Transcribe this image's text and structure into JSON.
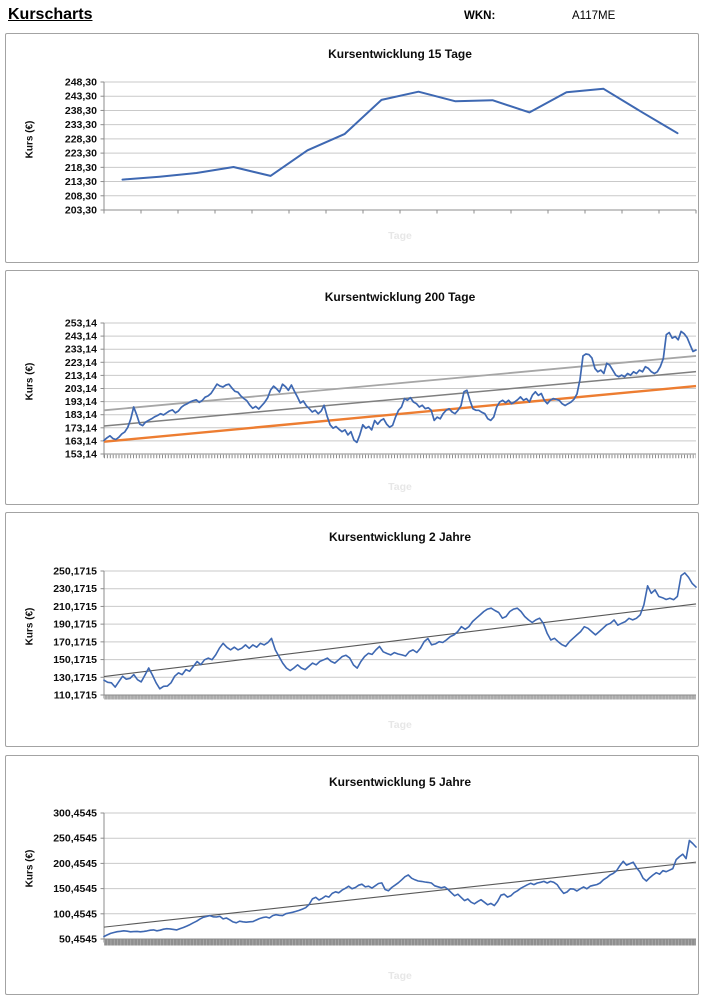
{
  "header": {
    "title": "Kurscharts",
    "wkn_label": "WKN:",
    "wkn_value": "A117ME"
  },
  "colors": {
    "series_blue": "#3E68B2",
    "trend_orange": "#ED7D31",
    "trend_gray_light": "#A6A6A6",
    "trend_gray_dark": "#7F7F7F",
    "trend_thin_dark": "#595959",
    "gridline": "#C9C9C9",
    "axis": "#8C8C8C",
    "band_light": "#ABABAB",
    "band_dark": "#8F8F8F"
  },
  "chart_data": [
    {
      "type": "line",
      "title": "Kursentwicklung 15 Tage",
      "ylabel": "Kurs (€)",
      "xlabel": "Tage",
      "ylim": [
        203.3,
        248.3
      ],
      "yticks": [
        {
          "label": "248,30",
          "value": 248.3
        },
        {
          "label": "243,30",
          "value": 243.3
        },
        {
          "label": "238,30",
          "value": 238.3
        },
        {
          "label": "233,30",
          "value": 233.3
        },
        {
          "label": "228,30",
          "value": 228.3
        },
        {
          "label": "223,30",
          "value": 223.3
        },
        {
          "label": "218,30",
          "value": 218.3
        },
        {
          "label": "213,30",
          "value": 213.3
        },
        {
          "label": "208,30",
          "value": 208.3
        },
        {
          "label": "203,30",
          "value": 203.3
        }
      ],
      "x_axis_style": "ticks",
      "x_tick_count": 16,
      "trendlines": [],
      "series": [
        {
          "name": "Kurs",
          "color": "#3E68B2",
          "width": 2,
          "values": [
            214.0,
            215.0,
            216.3,
            218.4,
            215.3,
            224.3,
            230.0,
            242.0,
            244.9,
            241.5,
            241.9,
            237.6,
            244.7,
            245.9,
            238.0,
            230.3
          ]
        }
      ]
    },
    {
      "type": "line",
      "title": "Kursentwicklung 200 Tage",
      "ylabel": "Kurs (€)",
      "xlabel": "Tage",
      "ylim": [
        153.14,
        253.14
      ],
      "yticks": [
        {
          "label": "253,14",
          "value": 253.14
        },
        {
          "label": "243,14",
          "value": 243.14
        },
        {
          "label": "233,14",
          "value": 233.14
        },
        {
          "label": "223,14",
          "value": 223.14
        },
        {
          "label": "213,14",
          "value": 213.14
        },
        {
          "label": "203,14",
          "value": 203.14
        },
        {
          "label": "193,14",
          "value": 193.14
        },
        {
          "label": "183,14",
          "value": 183.14
        },
        {
          "label": "173,14",
          "value": 173.14
        },
        {
          "label": "163,14",
          "value": 163.14
        },
        {
          "label": "153,14",
          "value": 153.14
        }
      ],
      "x_axis_style": "dashes",
      "x_tick_count": 200,
      "trendlines": [
        {
          "from": 186.5,
          "to": 228.0,
          "color": "#A6A6A6",
          "width": 1.8
        },
        {
          "from": 174.5,
          "to": 216.0,
          "color": "#7F7F7F",
          "width": 1.5
        },
        {
          "from": 162.5,
          "to": 205.0,
          "color": "#ED7D31",
          "width": 2.4
        }
      ],
      "series": [
        {
          "name": "Kurs",
          "color": "#3E68B2",
          "width": 1.7,
          "values": [
            163.5,
            165.5,
            167.0,
            165.0,
            164.2,
            166.0,
            168.5,
            170.0,
            173.5,
            180.0,
            189.0,
            183.0,
            176.0,
            174.8,
            177.5,
            178.8,
            180.0,
            181.5,
            182.5,
            183.9,
            183.0,
            184.5,
            186.0,
            186.8,
            184.5,
            186.0,
            188.8,
            190.5,
            191.5,
            193.0,
            193.8,
            194.5,
            192.5,
            194.0,
            196.5,
            197.5,
            199.5,
            203.0,
            206.5,
            205.0,
            204.3,
            205.8,
            206.4,
            203.5,
            201.0,
            200.3,
            197.5,
            195.5,
            193.8,
            190.5,
            188.0,
            189.5,
            187.5,
            190.0,
            192.5,
            196.0,
            202.0,
            204.9,
            203.0,
            200.5,
            206.4,
            204.5,
            201.8,
            205.8,
            201.0,
            196.7,
            192.1,
            193.6,
            190.0,
            187.7,
            185.2,
            186.5,
            183.9,
            186.0,
            190.3,
            182.0,
            175.4,
            172.8,
            174.1,
            172.0,
            170.2,
            171.5,
            167.7,
            170.2,
            163.8,
            162.0,
            167.7,
            175.4,
            172.8,
            174.1,
            171.5,
            178.7,
            175.9,
            178.7,
            180.0,
            176.0,
            173.6,
            175.0,
            181.3,
            186.5,
            189.0,
            195.4,
            194.1,
            196.2,
            192.8,
            191.6,
            189.0,
            190.3,
            187.7,
            188.5,
            186.5,
            178.8,
            181.3,
            180.0,
            183.9,
            186.5,
            187.7,
            185.2,
            183.9,
            186.5,
            190.0,
            200.6,
            201.8,
            194.1,
            187.7,
            186.5,
            186.5,
            185.0,
            183.9,
            180.0,
            178.8,
            181.3,
            189.0,
            192.8,
            194.1,
            192.3,
            194.1,
            191.5,
            192.8,
            194.5,
            196.7,
            194.1,
            195.4,
            192.8,
            198.0,
            200.6,
            197.9,
            199.3,
            194.1,
            191.5,
            194.1,
            195.4,
            194.8,
            194.1,
            191.5,
            190.2,
            191.5,
            192.8,
            195.0,
            199.0,
            210.0,
            228.0,
            229.5,
            229.0,
            226.5,
            218.5,
            215.9,
            217.2,
            214.6,
            222.4,
            220.9,
            217.2,
            213.4,
            212.1,
            213.4,
            212.1,
            214.6,
            213.3,
            215.9,
            214.6,
            217.2,
            215.9,
            219.8,
            218.5,
            215.9,
            214.6,
            215.9,
            219.8,
            226.0,
            244.2,
            245.9,
            241.6,
            242.8,
            240.3,
            246.7,
            245.0,
            242.0,
            236.5,
            231.4,
            232.5
          ]
        }
      ]
    },
    {
      "type": "line",
      "title": "Kursentwicklung 2 Jahre",
      "ylabel": "Kurs (€)",
      "xlabel": "Tage",
      "ylim": [
        110.1715,
        250.1715
      ],
      "yticks": [
        {
          "label": "250,1715",
          "value": 250.1715
        },
        {
          "label": "230,1715",
          "value": 230.1715
        },
        {
          "label": "210,1715",
          "value": 210.1715
        },
        {
          "label": "190,1715",
          "value": 190.1715
        },
        {
          "label": "170,1715",
          "value": 170.1715
        },
        {
          "label": "150,1715",
          "value": 150.1715
        },
        {
          "label": "130,1715",
          "value": 130.1715
        },
        {
          "label": "110,1715",
          "value": 110.1715
        }
      ],
      "x_axis_style": "band",
      "x_tick_count": 500,
      "band": {
        "height": 4,
        "color": "#ABABAB"
      },
      "trendlines": [
        {
          "from": 131.0,
          "to": 213.0,
          "color": "#595959",
          "width": 1.1
        }
      ],
      "series": [
        {
          "name": "Kurs",
          "color": "#3E68B2",
          "width": 1.6,
          "values": [
            126.9,
            124.5,
            123.9,
            119.1,
            125.3,
            131.4,
            128.0,
            129.0,
            133.2,
            127.5,
            125.0,
            132.8,
            140.6,
            132.8,
            123.9,
            117.2,
            120.0,
            120.2,
            123.9,
            131.4,
            135.1,
            133.2,
            138.8,
            136.9,
            142.5,
            148.0,
            144.4,
            149.9,
            151.8,
            150.0,
            155.5,
            163.0,
            168.5,
            164.0,
            161.1,
            164.1,
            161.1,
            163.0,
            166.7,
            162.9,
            166.7,
            164.1,
            168.5,
            166.7,
            169.3,
            174.1,
            161.1,
            153.6,
            146.2,
            140.6,
            137.7,
            140.6,
            144.3,
            140.6,
            138.8,
            142.5,
            146.2,
            144.3,
            148.1,
            149.9,
            151.8,
            148.1,
            146.2,
            149.9,
            153.6,
            155.0,
            152.0,
            144.0,
            140.5,
            148.0,
            153.6,
            157.3,
            156.0,
            161.0,
            165.0,
            159.0,
            157.0,
            155.5,
            158.0,
            156.5,
            155.4,
            154.2,
            159.2,
            161.1,
            158.1,
            163.0,
            170.5,
            174.0,
            166.8,
            167.9,
            170.4,
            169.4,
            172.4,
            176.1,
            178.0,
            181.8,
            187.4,
            184.4,
            187.4,
            193.1,
            196.9,
            200.6,
            204.4,
            207.1,
            208.2,
            205.6,
            203.3,
            196.9,
            198.8,
            204.4,
            207.1,
            208.2,
            204.4,
            198.8,
            195.0,
            192.0,
            195.0,
            196.9,
            191.2,
            180.0,
            172.3,
            174.2,
            170.4,
            167.0,
            165.0,
            170.4,
            174.2,
            178.0,
            181.7,
            187.3,
            185.5,
            181.7,
            178.0,
            181.7,
            185.5,
            189.3,
            191.1,
            194.9,
            189.0,
            191.1,
            193.0,
            196.8,
            195.0,
            196.8,
            200.6,
            212.0,
            233.5,
            225.0,
            228.9,
            221.4,
            220.0,
            218.0,
            219.5,
            217.8,
            221.5,
            245.0,
            248.0,
            243.0,
            236.0,
            232.0
          ]
        }
      ]
    },
    {
      "type": "line",
      "title": "Kursentwicklung 5 Jahre",
      "ylabel": "Kurs (€)",
      "xlabel": "Tage",
      "ylim": [
        50.4545,
        300.4545
      ],
      "yticks": [
        {
          "label": "300,4545",
          "value": 300.4545
        },
        {
          "label": "250,4545",
          "value": 250.4545
        },
        {
          "label": "200,4545",
          "value": 200.4545
        },
        {
          "label": "150,4545",
          "value": 150.4545
        },
        {
          "label": "100,4545",
          "value": 100.4545
        },
        {
          "label": "50,4545",
          "value": 50.4545
        }
      ],
      "x_axis_style": "band",
      "x_tick_count": 1250,
      "band": {
        "height": 6,
        "color": "#8F8F8F"
      },
      "trendlines": [
        {
          "from": 74.0,
          "to": 203.0,
          "color": "#595959",
          "width": 1.1
        }
      ],
      "series": [
        {
          "name": "Kurs",
          "color": "#3E68B2",
          "width": 1.6,
          "values": [
            55.5,
            58.5,
            61.5,
            63.4,
            64.9,
            65.8,
            66.7,
            66.0,
            64.7,
            65.2,
            65.5,
            64.7,
            65.5,
            66.5,
            68.0,
            68.6,
            66.7,
            68.0,
            69.9,
            70.8,
            70.5,
            69.5,
            68.6,
            71.0,
            73.2,
            76.0,
            79.0,
            82.5,
            85.7,
            90.0,
            93.5,
            95.0,
            96.8,
            94.5,
            94.2,
            95.5,
            90.3,
            92.2,
            88.5,
            84.4,
            82.5,
            85.7,
            84.5,
            83.8,
            84.5,
            85.0,
            88.0,
            91.0,
            93.0,
            94.2,
            92.2,
            96.8,
            98.7,
            97.5,
            96.8,
            100.7,
            102.0,
            103.5,
            105.2,
            107.2,
            109.8,
            112.5,
            119.0,
            130.0,
            133.1,
            127.9,
            131.2,
            135.7,
            133.5,
            140.9,
            144.2,
            142.2,
            147.4,
            151.0,
            155.2,
            150.0,
            152.6,
            157.2,
            159.1,
            153.9,
            155.2,
            151.5,
            156.0,
            160.5,
            161.7,
            148.7,
            146.1,
            152.6,
            157.2,
            162.0,
            168.0,
            174.0,
            177.4,
            171.1,
            167.9,
            165.5,
            164.8,
            163.5,
            162.8,
            161.6,
            156.0,
            154.0,
            152.0,
            153.9,
            148.9,
            142.4,
            136.1,
            139.3,
            132.9,
            126.6,
            129.8,
            123.4,
            120.3,
            124.7,
            128.5,
            123.4,
            118.4,
            121.0,
            116.8,
            125.0,
            137.4,
            139.3,
            133.5,
            136.1,
            142.4,
            146.0,
            151.0,
            154.5,
            158.0,
            161.0,
            158.4,
            161.6,
            163.0,
            164.8,
            161.6,
            164.8,
            162.9,
            158.4,
            148.9,
            141.0,
            143.7,
            150.0,
            149.5,
            145.6,
            150.1,
            153.9,
            150.1,
            155.2,
            157.0,
            158.4,
            161.6,
            167.9,
            172.0,
            177.4,
            180.6,
            186.0,
            196.0,
            204.7,
            197.0,
            200.0,
            202.8,
            192.0,
            183.8,
            171.1,
            165.5,
            172.0,
            177.4,
            182.0,
            179.0,
            186.0,
            184.0,
            187.0,
            190.1,
            208.0,
            214.0,
            218.7,
            210.0,
            246.0,
            240.0,
            233.0
          ]
        }
      ]
    }
  ]
}
